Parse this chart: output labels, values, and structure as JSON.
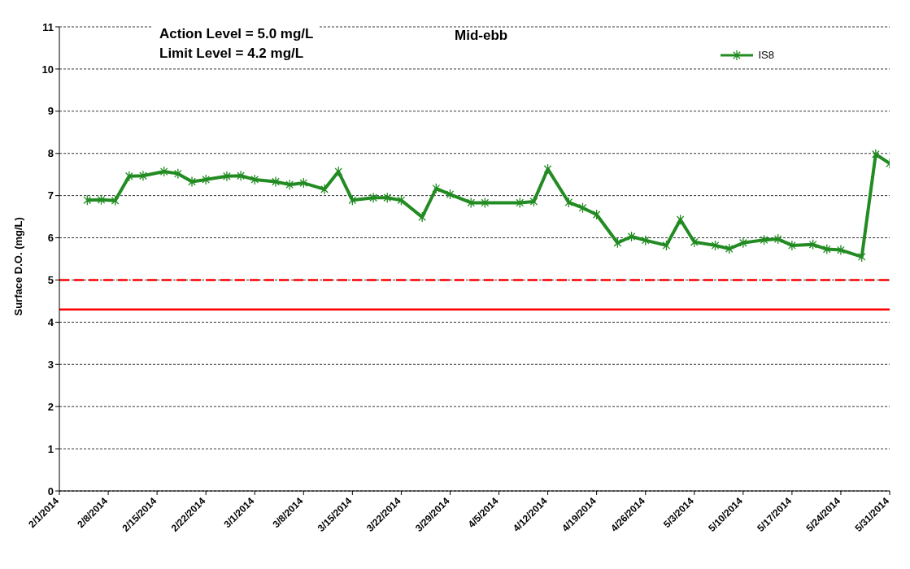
{
  "chart_data": {
    "type": "line",
    "title": "Mid-ebb",
    "ylabel": "Surface D.O. (mg/L)",
    "annotations": [
      "Action Level = 5.0 mg/L",
      "Limit Level = 4.2 mg/L"
    ],
    "x": [
      "2014-02-05",
      "2014-02-07",
      "2014-02-09",
      "2014-02-11",
      "2014-02-13",
      "2014-02-16",
      "2014-02-18",
      "2014-02-20",
      "2014-02-22",
      "2014-02-25",
      "2014-02-27",
      "2014-03-01",
      "2014-03-04",
      "2014-03-06",
      "2014-03-08",
      "2014-03-11",
      "2014-03-13",
      "2014-03-15",
      "2014-03-18",
      "2014-03-20",
      "2014-03-22",
      "2014-03-25",
      "2014-03-27",
      "2014-03-29",
      "2014-04-01",
      "2014-04-03",
      "2014-04-08",
      "2014-04-10",
      "2014-04-12",
      "2014-04-15",
      "2014-04-17",
      "2014-04-19",
      "2014-04-22",
      "2014-04-24",
      "2014-04-26",
      "2014-04-29",
      "2014-05-01",
      "2014-05-03",
      "2014-05-06",
      "2014-05-08",
      "2014-05-10",
      "2014-05-13",
      "2014-05-15",
      "2014-05-17",
      "2014-05-20",
      "2014-05-22",
      "2014-05-24",
      "2014-05-27",
      "2014-05-29",
      "2014-05-31"
    ],
    "series": [
      {
        "name": "IS8",
        "color": "#228b22",
        "values": [
          6.89,
          6.9,
          6.88,
          7.46,
          7.47,
          7.57,
          7.52,
          7.33,
          7.38,
          7.46,
          7.47,
          7.38,
          7.33,
          7.26,
          7.3,
          7.15,
          7.57,
          6.89,
          6.95,
          6.95,
          6.89,
          6.49,
          7.17,
          7.03,
          6.83,
          6.83,
          6.83,
          6.86,
          7.63,
          6.84,
          6.71,
          6.55,
          5.88,
          6.03,
          5.94,
          5.82,
          6.43,
          5.9,
          5.82,
          5.74,
          5.88,
          5.95,
          5.97,
          5.82,
          5.84,
          5.73,
          5.71,
          5.55,
          7.98,
          7.76
        ]
      }
    ],
    "xlim": [
      "2014-02-01",
      "2014-05-31"
    ],
    "xticks": [
      {
        "value": "2014-02-01",
        "label": "2/1/2014"
      },
      {
        "value": "2014-02-08",
        "label": "2/8/2014"
      },
      {
        "value": "2014-02-15",
        "label": "2/15/2014"
      },
      {
        "value": "2014-02-22",
        "label": "2/22/2014"
      },
      {
        "value": "2014-03-01",
        "label": "3/1/2014"
      },
      {
        "value": "2014-03-08",
        "label": "3/8/2014"
      },
      {
        "value": "2014-03-15",
        "label": "3/15/2014"
      },
      {
        "value": "2014-03-22",
        "label": "3/22/2014"
      },
      {
        "value": "2014-03-29",
        "label": "3/29/2014"
      },
      {
        "value": "2014-04-05",
        "label": "4/5/2014"
      },
      {
        "value": "2014-04-12",
        "label": "4/12/2014"
      },
      {
        "value": "2014-04-19",
        "label": "4/19/2014"
      },
      {
        "value": "2014-04-26",
        "label": "4/26/2014"
      },
      {
        "value": "2014-05-03",
        "label": "5/3/2014"
      },
      {
        "value": "2014-05-10",
        "label": "5/10/2014"
      },
      {
        "value": "2014-05-17",
        "label": "5/17/2014"
      },
      {
        "value": "2014-05-24",
        "label": "5/24/2014"
      },
      {
        "value": "2014-05-31",
        "label": "5/31/2014"
      }
    ],
    "ylim": [
      0,
      11
    ],
    "yticks": [
      0,
      1,
      2,
      3,
      4,
      5,
      6,
      7,
      8,
      9,
      10,
      11
    ],
    "ref_lines": [
      {
        "axis": "y",
        "value": 5.0,
        "color": "#ff0000",
        "line_style": "dashed"
      },
      {
        "axis": "y",
        "value": 4.3,
        "color": "#ff0000",
        "line_style": "solid"
      }
    ],
    "grid": "y",
    "legend": "top right",
    "marker": "cross",
    "line_style": "solid"
  }
}
